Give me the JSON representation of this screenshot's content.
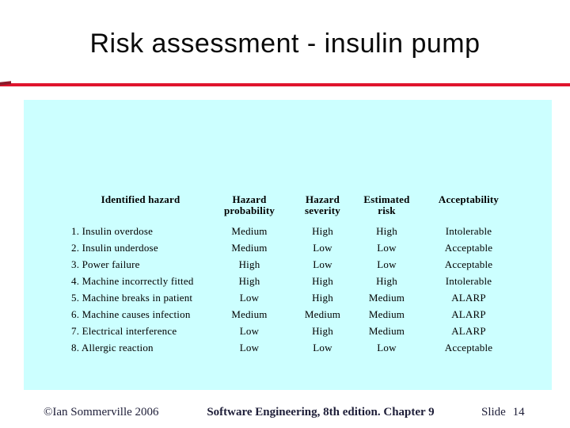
{
  "slide": {
    "title": "Risk assessment - insulin pump"
  },
  "table": {
    "columns": [
      {
        "line1": "Identified hazard",
        "line2": ""
      },
      {
        "line1": "Hazard",
        "line2": "probability"
      },
      {
        "line1": "Hazard",
        "line2": "severity"
      },
      {
        "line1": "Estimated",
        "line2": "risk"
      },
      {
        "line1": "Acceptability",
        "line2": ""
      }
    ],
    "rows": [
      {
        "hazard": "1. Insulin overdose",
        "probability": "Medium",
        "severity": "High",
        "risk": "High",
        "acceptability": "Intolerable"
      },
      {
        "hazard": "2. Insulin underdose",
        "probability": "Medium",
        "severity": "Low",
        "risk": "Low",
        "acceptability": "Acceptable"
      },
      {
        "hazard": "3. Power failure",
        "probability": "High",
        "severity": "Low",
        "risk": "Low",
        "acceptability": "Acceptable"
      },
      {
        "hazard": "4. Machine incorrectly fitted",
        "probability": "High",
        "severity": "High",
        "risk": "High",
        "acceptability": "Intolerable"
      },
      {
        "hazard": "5. Machine breaks in patient",
        "probability": "Low",
        "severity": "High",
        "risk": "Medium",
        "acceptability": "ALARP"
      },
      {
        "hazard": "6. Machine causes infection",
        "probability": "Medium",
        "severity": "Medium",
        "risk": "Medium",
        "acceptability": "ALARP"
      },
      {
        "hazard": "7. Electrical interference",
        "probability": "Low",
        "severity": "High",
        "risk": "Medium",
        "acceptability": "ALARP"
      },
      {
        "hazard": "8. Allergic reaction",
        "probability": "Low",
        "severity": "Low",
        "risk": "Low",
        "acceptability": "Acceptable"
      }
    ]
  },
  "footer": {
    "copyright": "©Ian Sommerville 2006",
    "book": "Software Engineering, 8th edition. Chapter 9",
    "slide_number": "Slide 14"
  },
  "colors": {
    "accent_red": "#E0142D",
    "accent_red_dark": "#8B1A2A",
    "panel_cyan": "#CCFFFF",
    "footer_text": "#1E1E38"
  }
}
